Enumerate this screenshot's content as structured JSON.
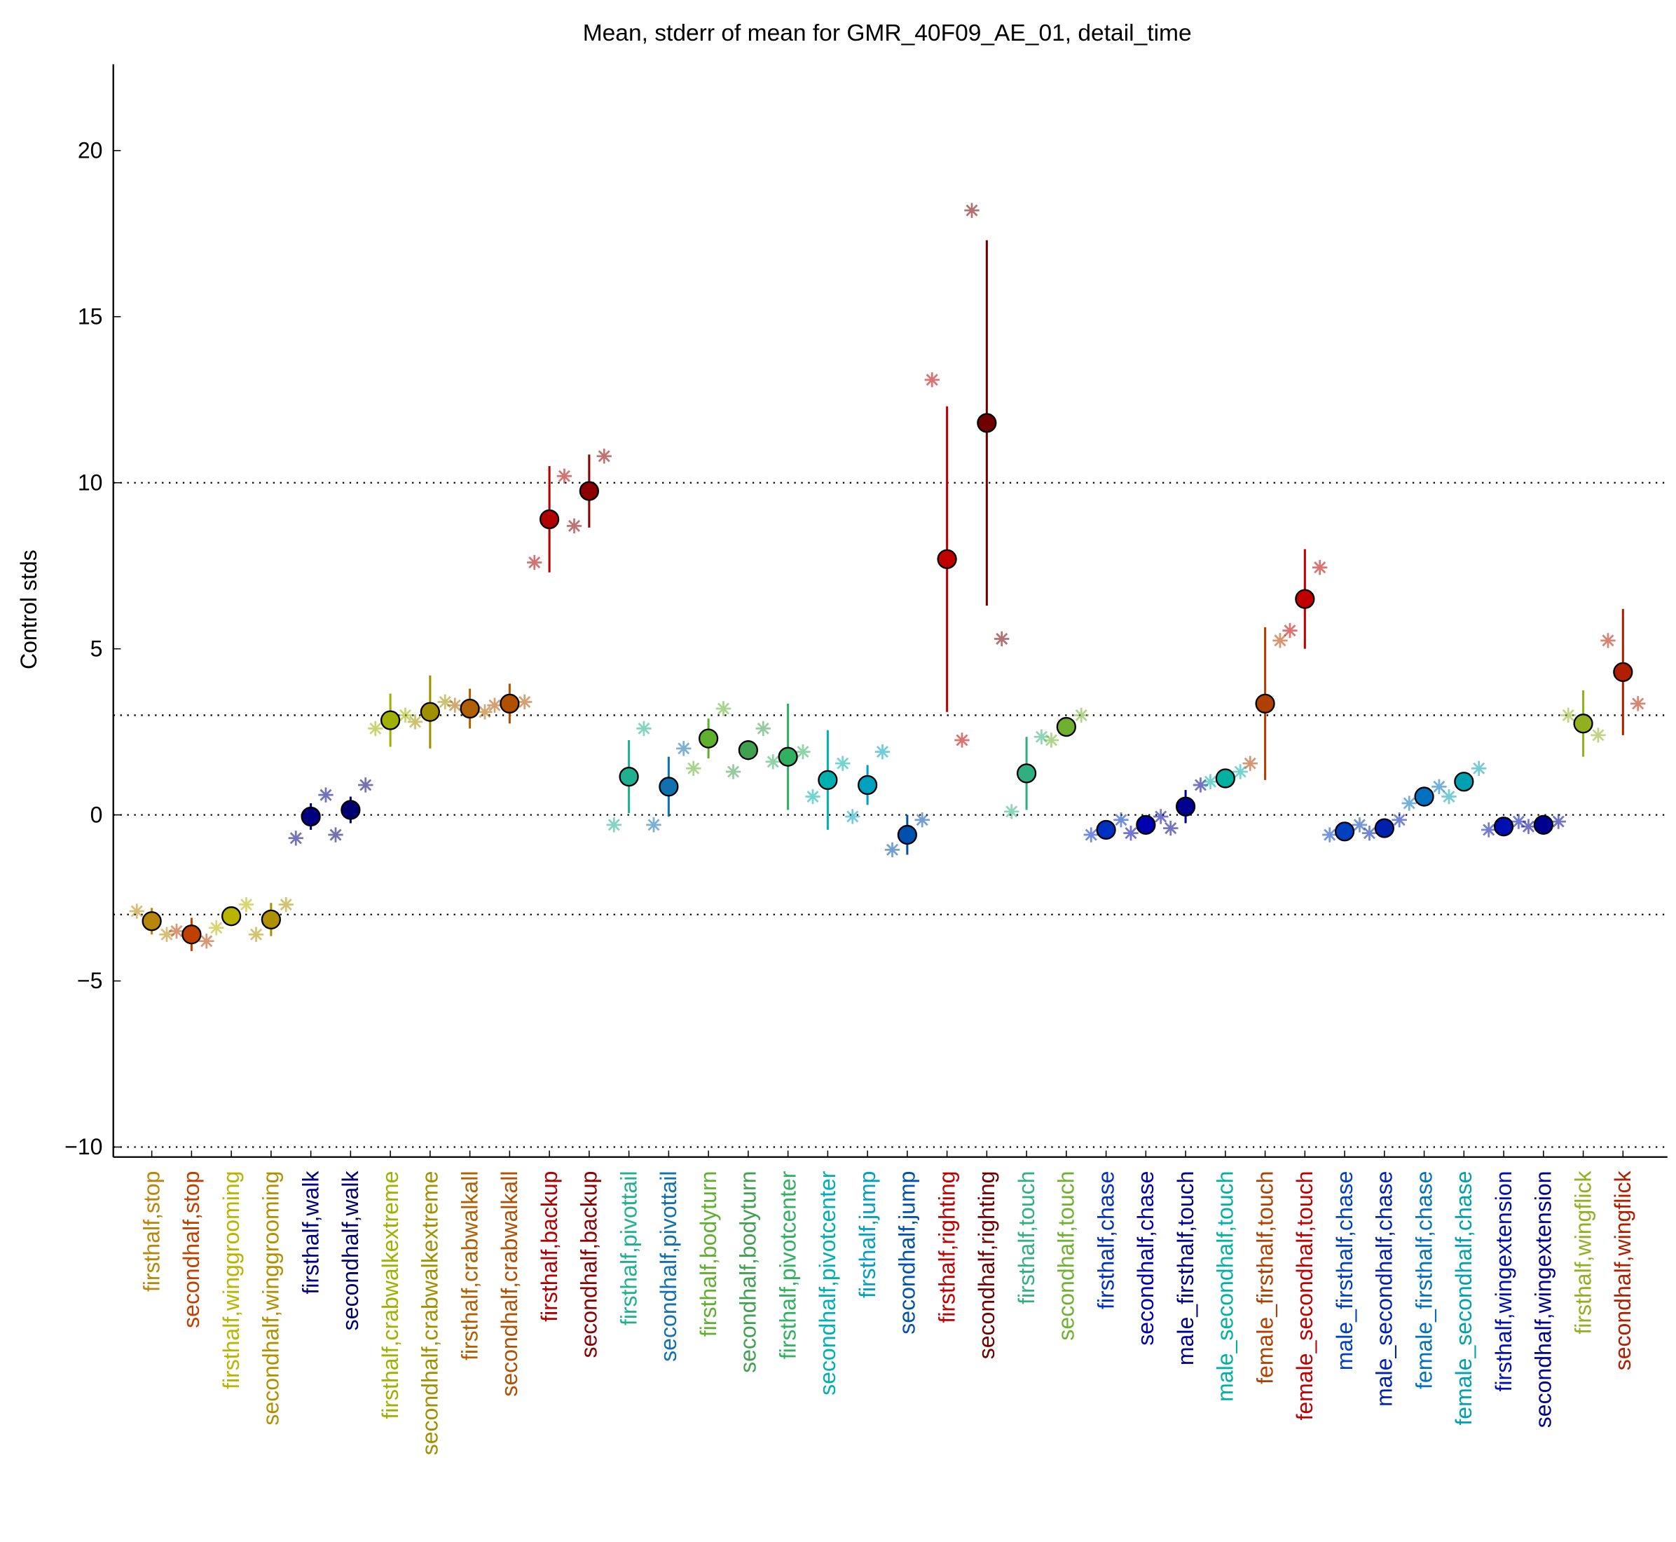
{
  "chart_data": {
    "type": "errorbar",
    "title": "Mean, stderr of mean for GMR_40F09_AE_01, detail_time",
    "y_label": "Control stds",
    "ylim": [
      -10.3,
      22.6
    ],
    "yticks": [
      {
        "value": -10,
        "label": "−10"
      },
      {
        "value": -5,
        "label": "−5"
      },
      0,
      5,
      10,
      15,
      20
    ],
    "ref_lines": [
      -10,
      -3,
      0,
      3,
      10
    ],
    "categories": [
      "firsthalf,stop",
      "secondhalf,stop",
      "firsthalf,winggrooming",
      "secondhalf,winggrooming",
      "firsthalf,walk",
      "secondhalf,walk",
      "firsthalf,crabwalkextreme",
      "secondhalf,crabwalkextreme",
      "firsthalf,crabwalkall",
      "secondhalf,crabwalkall",
      "firsthalf,backup",
      "secondhalf,backup",
      "firsthalf,pivottail",
      "secondhalf,pivottail",
      "firsthalf,bodyturn",
      "secondhalf,bodyturn",
      "firsthalf,pivotcenter",
      "secondhalf,pivotcenter",
      "firsthalf,jump",
      "secondhalf,jump",
      "firsthalf,righting",
      "secondhalf,righting",
      "firsthalf,touch",
      "secondhalf,touch",
      "firsthalf,chase",
      "secondhalf,chase",
      "male_firsthalf,touch",
      "male_secondhalf,touch",
      "female_firsthalf,touch",
      "female_secondhalf,touch",
      "male_firsthalf,chase",
      "male_secondhalf,chase",
      "female_firsthalf,chase",
      "female_secondhalf,chase",
      "firsthalf,wingextension",
      "secondhalf,wingextension",
      "firsthalf,wingflick",
      "secondhalf,wingflick"
    ],
    "values": [
      -3.2,
      -3.6,
      -3.05,
      -3.15,
      -0.05,
      0.15,
      2.85,
      3.1,
      3.2,
      3.35,
      8.9,
      9.75,
      1.15,
      0.85,
      2.3,
      1.95,
      1.75,
      1.05,
      0.9,
      -0.6,
      7.7,
      11.8,
      1.25,
      2.65,
      -0.45,
      -0.3,
      0.25,
      1.1,
      3.35,
      6.5,
      -0.5,
      -0.4,
      0.55,
      1.0,
      -0.35,
      -0.3,
      2.75,
      4.3
    ],
    "errors": [
      0.4,
      0.5,
      0.3,
      0.5,
      0.4,
      0.4,
      0.8,
      1.1,
      0.6,
      0.6,
      1.6,
      1.1,
      1.1,
      0.9,
      0.6,
      0.3,
      1.6,
      1.5,
      0.6,
      0.6,
      4.6,
      5.5,
      1.1,
      0.3,
      0.15,
      0.1,
      0.5,
      0.2,
      2.3,
      1.5,
      0.1,
      0.1,
      0.3,
      0.2,
      0.1,
      0.1,
      1.0,
      1.9
    ],
    "colors": [
      "#b8860b",
      "#c04000",
      "#b8b400",
      "#b09000",
      "#000080",
      "#000070",
      "#a0b000",
      "#a09000",
      "#b06000",
      "#b05000",
      "#b00000",
      "#8b0000",
      "#20b090",
      "#1070b0",
      "#60b030",
      "#40a050",
      "#30b060",
      "#00b0b0",
      "#00a0c0",
      "#0050b0",
      "#c00000",
      "#700000",
      "#30b080",
      "#70b030",
      "#0030c0",
      "#0000b0",
      "#000090",
      "#00b0a0",
      "#b04000",
      "#c00000",
      "#0040c0",
      "#0020b0",
      "#0070c0",
      "#00a0b0",
      "#0010b0",
      "#000090",
      "#90b020",
      "#b02000"
    ],
    "stars": {
      "left": [
        -2.9,
        -3.5,
        -3.4,
        -3.6,
        -0.7,
        -0.6,
        2.6,
        2.8,
        3.3,
        3.3,
        7.6,
        8.7,
        -0.3,
        -0.3,
        1.4,
        1.3,
        1.6,
        0.55,
        -0.05,
        -1.05,
        13.1,
        18.2,
        0.1,
        2.25,
        -0.6,
        -0.55,
        -0.4,
        1.0,
        1.55,
        5.55,
        -0.6,
        -0.55,
        0.35,
        0.55,
        -0.45,
        -0.35,
        3.0,
        5.25
      ],
      "right": [
        -3.6,
        -3.8,
        -2.7,
        -2.7,
        0.6,
        0.9,
        3.0,
        3.4,
        3.1,
        3.4,
        10.2,
        10.8,
        2.6,
        2.0,
        3.2,
        2.6,
        1.9,
        1.55,
        1.9,
        -0.15,
        2.25,
        5.3,
        2.35,
        3.0,
        -0.15,
        -0.05,
        0.9,
        1.3,
        5.25,
        7.45,
        -0.3,
        -0.15,
        0.85,
        1.4,
        -0.2,
        -0.2,
        2.4,
        3.35
      ]
    }
  }
}
